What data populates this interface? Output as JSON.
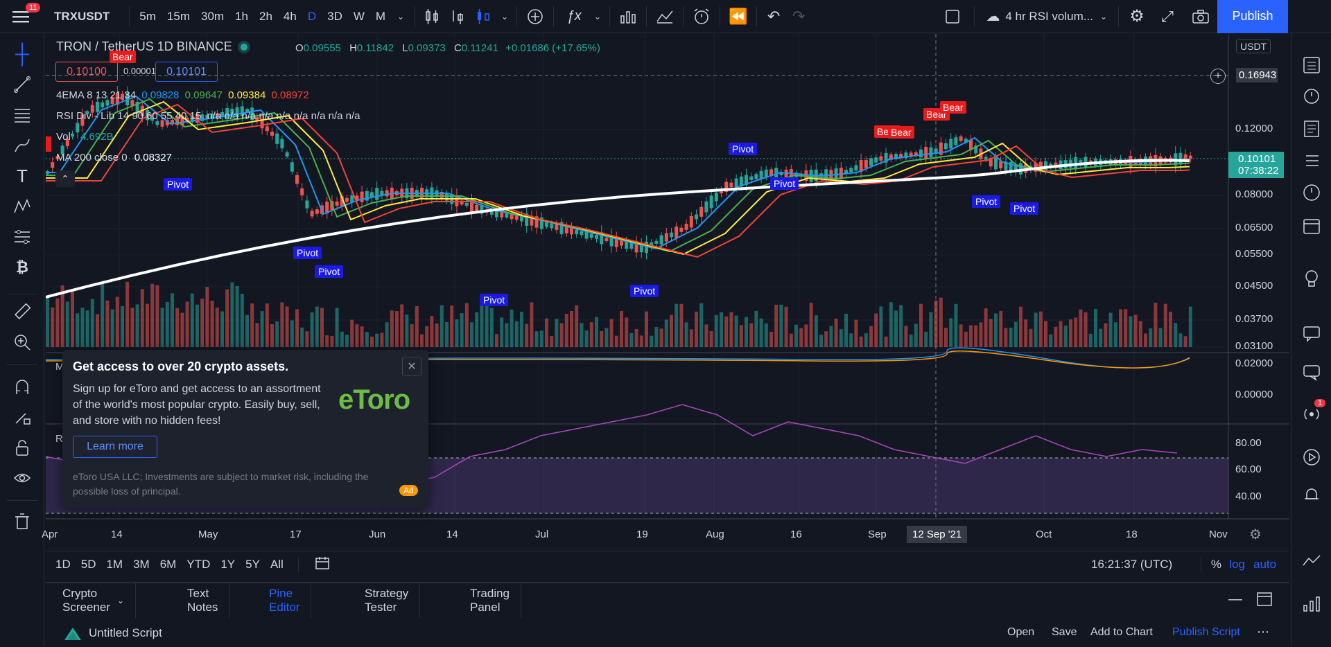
{
  "notif_count": "11",
  "symbol": "TRXUSDT",
  "intervals": [
    "5m",
    "15m",
    "30m",
    "1h",
    "2h",
    "4h",
    "D",
    "3D",
    "W",
    "M"
  ],
  "active_interval": "D",
  "layout_name": "4 hr RSI volum...",
  "publish_label": "Publish",
  "chart": {
    "pair_title": "TRON / TetherUS  1D  BINANCE",
    "ohlc": {
      "o_label": "O",
      "o": "0.09555",
      "h_label": "H",
      "h": "0.11842",
      "l_label": "L",
      "l": "0.09373",
      "c_label": "C",
      "c": "0.11241",
      "chg": "+0.01686 (+17.65%)"
    },
    "sell_price": "0.10100",
    "spread": "0.00001",
    "buy_price": "0.10101",
    "ema_label": "4EMA 8 13 21 34",
    "ema_values": [
      "0.09828",
      "0.09647",
      "0.09384",
      "0.08972"
    ],
    "rsi_div_label": "RSI Div - Lib 14 90 60 55 40 15",
    "rsi_div_values": "n/a n/a n/a n/a n/a n/a n/a n/a n/a",
    "vol_label": "Vol",
    "vol_value": "4.692B",
    "ma_label": "MA 200 close 0",
    "ma_value": "0.08327",
    "currency": "USDT",
    "crosshair_price": "0.16943",
    "last_price": "0.10101",
    "countdown": "07:38:22",
    "price_ticks": [
      "0.12000",
      "0.08000",
      "0.06500",
      "0.05500",
      "0.04500",
      "0.03700",
      "0.03100"
    ],
    "macd_ticks": [
      "0.02000",
      "0.00000"
    ],
    "rsi_ticks": [
      "80.00",
      "60.00",
      "40.00"
    ],
    "date_ticks": [
      "Apr",
      "14",
      "May",
      "17",
      "Jun",
      "14",
      "Jul",
      "19",
      "Aug",
      "16",
      "Sep",
      "Oct",
      "18",
      "Nov"
    ],
    "crosshair_date": "12 Sep '21",
    "pivot_label": "Pivot",
    "bear_label": "Bear",
    "macd_letter": "M",
    "rsi_letter": "R"
  },
  "ranges": [
    "1D",
    "5D",
    "1M",
    "3M",
    "6M",
    "YTD",
    "1Y",
    "5Y",
    "All"
  ],
  "clock": "16:21:37 (UTC)",
  "scale_opts": [
    "%",
    "log",
    "auto"
  ],
  "ad": {
    "title": "Get access to over 20 crypto assets.",
    "body": "Sign up for eToro and get access to an assortment of the world's most popular crypto. Easily buy, sell, and store with no hidden fees!",
    "cta": "Learn more",
    "disclaimer": "eToro USA LLC; Investments are subject to market risk, including the possible loss of principal.",
    "badge": "Ad",
    "logo": "eToro"
  },
  "tabs": [
    "Crypto Screener",
    "Text Notes",
    "Pine Editor",
    "Strategy Tester",
    "Trading Panel"
  ],
  "active_tab": "Pine Editor",
  "script_name": "Untitled Script",
  "script_actions": [
    "Open",
    "Save",
    "Add to Chart",
    "Publish Script"
  ],
  "right_notif": "1",
  "colors": {
    "bg": "#131722",
    "accent": "#2962ff",
    "up": "#26a69a",
    "down": "#ef5350",
    "pivot": "#1a1ae6",
    "bear": "#e81c1c",
    "rsi": "#9c27b0"
  }
}
